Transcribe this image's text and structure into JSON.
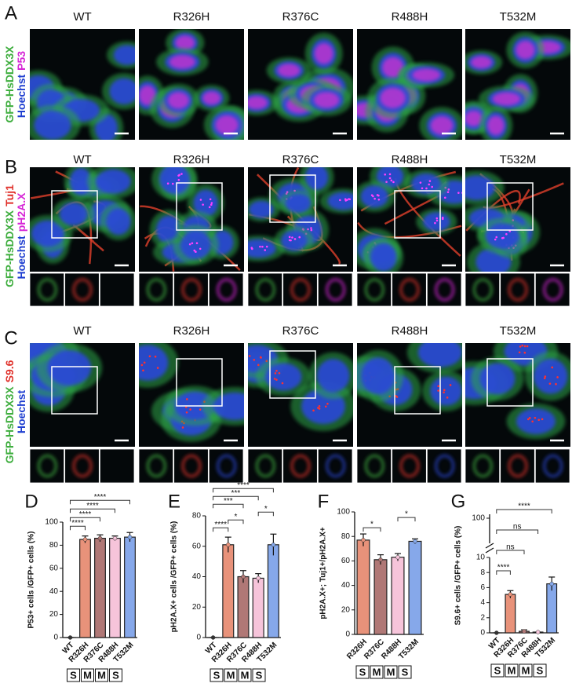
{
  "panels": [
    {
      "letter": "A",
      "titles": [
        "WT",
        "R326H",
        "R376C",
        "R488H",
        "T532M"
      ],
      "stain_lines": [
        [
          {
            "text": "GFP-HsDDX3X",
            "color": "#3fae3f"
          }
        ],
        [
          {
            "text": "Hoechst",
            "color": "#1f3fd0"
          },
          {
            "text": "P53",
            "color": "#d628d6"
          }
        ]
      ]
    },
    {
      "letter": "B",
      "titles": [
        "WT",
        "R326H",
        "R376C",
        "R488H",
        "T532M"
      ],
      "stain_lines": [
        [
          {
            "text": "GFP-HsDDX3X",
            "color": "#3fae3f"
          },
          {
            "text": "Tuj1",
            "color": "#e0302a"
          }
        ],
        [
          {
            "text": "Hoechst",
            "color": "#1f3fd0"
          },
          {
            "text": "pH2A.X",
            "color": "#d628d6"
          }
        ]
      ]
    },
    {
      "letter": "C",
      "titles": [
        "WT",
        "R326H",
        "R376C",
        "R488H",
        "T532M"
      ],
      "stain_lines": [
        [
          {
            "text": "GFP-HsDDX3X",
            "color": "#3fae3f"
          },
          {
            "text": "S9.6",
            "color": "#e0302a"
          }
        ],
        [
          {
            "text": "Hoechst",
            "color": "#1f3fd0"
          }
        ]
      ]
    }
  ],
  "chart_data": [
    {
      "type": "bar",
      "letter": "D",
      "ylabel": "P53+ cells /GFP+ cells (%)",
      "categories": [
        "WT",
        "R326H",
        "R376C",
        "R488H",
        "T532M"
      ],
      "values": [
        0,
        85,
        86,
        86,
        87
      ],
      "errors": [
        0,
        3,
        3,
        2,
        4
      ],
      "colors": [
        "#555555",
        "#e8927a",
        "#b07876",
        "#f6c4da",
        "#86a8ea"
      ],
      "ylim": [
        0,
        100
      ],
      "yticks": [
        0,
        20,
        40,
        60,
        80,
        100
      ],
      "brackets": [
        {
          "from": "WT",
          "to": "R326H",
          "label": "****"
        },
        {
          "from": "WT",
          "to": "R376C",
          "label": "****"
        },
        {
          "from": "WT",
          "to": "R488H",
          "label": "****"
        },
        {
          "from": "WT",
          "to": "T532M",
          "label": "****"
        }
      ],
      "classes": [
        "S",
        "M",
        "M",
        "S"
      ]
    },
    {
      "type": "bar",
      "letter": "E",
      "ylabel": "pH2A.X+ cells /GFP+ cells (%)",
      "categories": [
        "WT",
        "R326H",
        "R376C",
        "R488H",
        "T532M"
      ],
      "values": [
        0,
        61,
        40,
        39,
        61
      ],
      "errors": [
        0,
        5,
        4,
        3,
        7
      ],
      "colors": [
        "#555555",
        "#e8927a",
        "#b07876",
        "#f6c4da",
        "#86a8ea"
      ],
      "ylim": [
        0,
        80
      ],
      "yticks": [
        0,
        20,
        40,
        60,
        80
      ],
      "brackets": [
        {
          "from": "WT",
          "to": "R326H",
          "label": "****"
        },
        {
          "from": "R326H",
          "to": "R376C",
          "label": "*"
        },
        {
          "from": "R488H",
          "to": "T532M",
          "label": "*"
        },
        {
          "from": "WT",
          "to": "R376C",
          "label": "***"
        },
        {
          "from": "WT",
          "to": "R488H",
          "label": "***"
        },
        {
          "from": "WT",
          "to": "T532M",
          "label": "****"
        }
      ],
      "classes": [
        "S",
        "M",
        "M",
        "S"
      ]
    },
    {
      "type": "bar",
      "letter": "F",
      "ylabel": "pH2A.X+; Tuj1+/pH2A.X+",
      "categories": [
        "R326H",
        "R376C",
        "R488H",
        "T532M"
      ],
      "values": [
        77,
        61,
        63,
        76
      ],
      "errors": [
        5,
        4,
        3,
        2
      ],
      "colors": [
        "#e8927a",
        "#b07876",
        "#f6c4da",
        "#86a8ea"
      ],
      "ylim": [
        0,
        100
      ],
      "yticks": [
        0,
        20,
        40,
        60,
        80,
        100
      ],
      "brackets": [
        {
          "from": "R326H",
          "to": "R376C",
          "label": "*"
        },
        {
          "from": "R488H",
          "to": "T532M",
          "label": "*"
        }
      ],
      "classes": [
        "S",
        "M",
        "M",
        "S"
      ]
    },
    {
      "type": "bar",
      "letter": "G",
      "ylabel": "S9.6+ cells /GFP+ cells (%)",
      "categories": [
        "WT",
        "R326H",
        "R376C",
        "R488H",
        "T532M"
      ],
      "values": [
        0,
        5.1,
        0.2,
        0.1,
        6.5
      ],
      "errors": [
        0,
        0.5,
        0.2,
        0,
        0.9
      ],
      "colors": [
        "#555555",
        "#e8927a",
        "#b07876",
        "#f6c4da",
        "#86a8ea"
      ],
      "ylim": [
        0,
        10
      ],
      "yticks": [
        0,
        2,
        4,
        6,
        8,
        10
      ],
      "y_break_ticks": [
        100
      ],
      "brackets": [
        {
          "from": "WT",
          "to": "R326H",
          "label": "****"
        },
        {
          "from": "WT",
          "to": "R376C",
          "label": "ns"
        },
        {
          "from": "WT",
          "to": "R488H",
          "label": "ns"
        },
        {
          "from": "WT",
          "to": "T532M",
          "label": "****"
        }
      ],
      "classes": [
        "S",
        "M",
        "M",
        "S"
      ]
    }
  ]
}
